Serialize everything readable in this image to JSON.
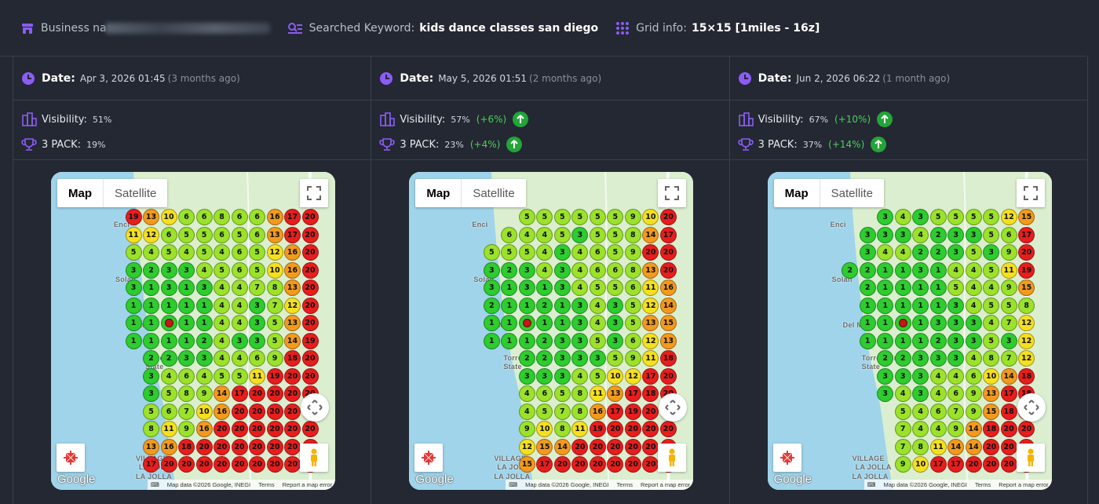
{
  "header": {
    "business_label": "Business na",
    "keyword_label": "Searched Keyword:",
    "keyword_value": "kids dance classes san diego",
    "grid_label": "Grid info:",
    "grid_value": "15×15 [1miles - 16z]"
  },
  "map_ui": {
    "tab_map": "Map",
    "tab_satellite": "Satellite",
    "google": "Google",
    "attribution": "Map data ©2026 Google, INEGI",
    "terms": "Terms",
    "report": "Report a map error",
    "places": [
      "Enci",
      "Solan",
      "Del Mar",
      "Torrey Pines State",
      "VILLAGE",
      "LA JOLLA",
      "LA JOLLA"
    ]
  },
  "colors": {
    "good": "#2ecc2e",
    "lime": "#9be22b",
    "yellow": "#f5e020",
    "orange": "#f39a1c",
    "red": "#e81d1d"
  },
  "scans": [
    {
      "date_label": "Date:",
      "date": "Apr 3, 2026 01:45",
      "ago": "(3 months ago)",
      "visibility_label": "Visibility:",
      "visibility": "51%",
      "visibility_change": "",
      "pack_label": "3 PACK:",
      "pack": "19%",
      "pack_change": "",
      "grid": [
        [
          19,
          13,
          10,
          6,
          6,
          8,
          6,
          6,
          16,
          17,
          20
        ],
        [
          11,
          12,
          6,
          5,
          5,
          6,
          5,
          6,
          13,
          17,
          20
        ],
        [
          5,
          4,
          5,
          4,
          5,
          4,
          6,
          5,
          12,
          16,
          20
        ],
        [
          3,
          2,
          3,
          3,
          4,
          5,
          6,
          5,
          10,
          16,
          20
        ],
        [
          3,
          1,
          3,
          1,
          3,
          4,
          4,
          7,
          8,
          13,
          20
        ],
        [
          1,
          1,
          1,
          1,
          1,
          4,
          4,
          3,
          7,
          12,
          20
        ],
        [
          1,
          1,
          "C",
          1,
          1,
          4,
          4,
          3,
          5,
          13,
          20
        ],
        [
          1,
          1,
          1,
          1,
          2,
          4,
          3,
          3,
          5,
          14,
          19
        ],
        [
          2,
          2,
          3,
          3,
          4,
          4,
          6,
          9,
          18,
          20
        ],
        [
          3,
          4,
          6,
          4,
          5,
          5,
          11,
          19,
          20,
          20
        ],
        [
          3,
          5,
          8,
          9,
          14,
          17,
          20,
          20,
          20,
          20
        ],
        [
          5,
          6,
          7,
          10,
          16,
          20,
          20,
          20,
          20,
          20
        ],
        [
          8,
          11,
          9,
          16,
          20,
          20,
          20,
          20,
          20,
          20
        ],
        [
          13,
          16,
          18,
          20,
          20,
          20,
          20,
          20,
          20,
          20
        ],
        [
          17,
          20,
          20,
          20,
          20,
          20,
          20,
          20,
          20,
          20
        ]
      ]
    },
    {
      "date_label": "Date:",
      "date": "May 5, 2026 01:51",
      "ago": "(2 months ago)",
      "visibility_label": "Visibility:",
      "visibility": "57%",
      "visibility_change": "(+6%)",
      "pack_label": "3 PACK:",
      "pack": "23%",
      "pack_change": "(+4%)",
      "grid": [
        [
          5,
          5,
          5,
          5,
          5,
          5,
          9,
          10,
          20
        ],
        [
          6,
          4,
          4,
          5,
          3,
          5,
          5,
          8,
          14,
          17
        ],
        [
          5,
          5,
          5,
          4,
          3,
          4,
          6,
          5,
          9,
          20,
          20
        ],
        [
          3,
          2,
          3,
          4,
          3,
          4,
          6,
          6,
          8,
          13,
          20
        ],
        [
          3,
          1,
          3,
          1,
          3,
          4,
          5,
          5,
          6,
          11,
          16
        ],
        [
          2,
          1,
          1,
          2,
          1,
          3,
          4,
          3,
          5,
          12,
          14
        ],
        [
          1,
          1,
          "C",
          1,
          1,
          3,
          4,
          3,
          5,
          13,
          15
        ],
        [
          1,
          1,
          1,
          2,
          3,
          3,
          5,
          3,
          6,
          12,
          13
        ],
        [
          2,
          2,
          3,
          3,
          3,
          5,
          9,
          11,
          18
        ],
        [
          3,
          3,
          3,
          4,
          5,
          10,
          12,
          17,
          20
        ],
        [
          4,
          6,
          5,
          8,
          11,
          13,
          17,
          18,
          20
        ],
        [
          4,
          5,
          7,
          8,
          16,
          17,
          19,
          20,
          20
        ],
        [
          9,
          10,
          8,
          11,
          19,
          20,
          20,
          20,
          20
        ],
        [
          12,
          15,
          14,
          20,
          20,
          20,
          20,
          20,
          20
        ],
        [
          15,
          17,
          20,
          20,
          20,
          20,
          20,
          20,
          20
        ]
      ]
    },
    {
      "date_label": "Date:",
      "date": "Jun 2, 2026 06:22",
      "ago": "(1 month ago)",
      "visibility_label": "Visibility:",
      "visibility": "67%",
      "visibility_change": "(+10%)",
      "pack_label": "3 PACK:",
      "pack": "37%",
      "pack_change": "(+14%)",
      "grid": [
        [
          3,
          4,
          3,
          5,
          5,
          5,
          5,
          12,
          15
        ],
        [
          3,
          3,
          3,
          4,
          2,
          3,
          3,
          5,
          6,
          17
        ],
        [
          3,
          4,
          4,
          2,
          2,
          3,
          5,
          3,
          9,
          20
        ],
        [
          2,
          2,
          1,
          1,
          3,
          1,
          4,
          4,
          5,
          11,
          19
        ],
        [
          2,
          1,
          1,
          1,
          1,
          5,
          4,
          4,
          9,
          15
        ],
        [
          1,
          1,
          1,
          1,
          1,
          3,
          4,
          5,
          5,
          8
        ],
        [
          1,
          1,
          "C",
          1,
          3,
          3,
          3,
          4,
          7,
          12
        ],
        [
          1,
          1,
          1,
          1,
          2,
          3,
          3,
          5,
          3,
          12
        ],
        [
          2,
          2,
          3,
          3,
          3,
          4,
          8,
          7,
          12
        ],
        [
          3,
          3,
          3,
          4,
          4,
          6,
          10,
          14,
          18
        ],
        [
          3,
          4,
          3,
          4,
          6,
          9,
          13,
          17,
          18
        ],
        [
          5,
          4,
          6,
          7,
          9,
          15,
          18,
          20
        ],
        [
          7,
          4,
          4,
          9,
          14,
          18,
          20,
          20
        ],
        [
          7,
          8,
          11,
          14,
          14,
          20,
          20,
          20
        ],
        [
          9,
          10,
          17,
          17,
          20,
          20,
          20,
          20
        ]
      ]
    }
  ]
}
